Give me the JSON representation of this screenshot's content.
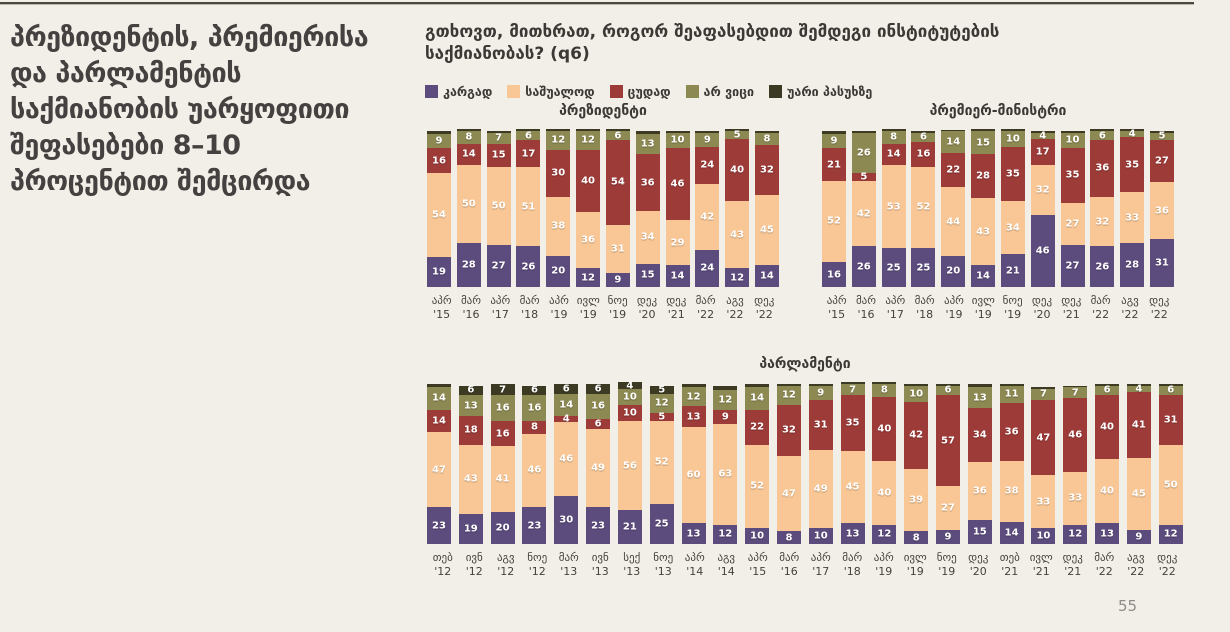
{
  "page": {
    "number": "55"
  },
  "sidebar": {
    "title": "პრეზიდენტის, პრემიერისა და პარლამენტის საქმიანობის უარყოფითი შეფასებები 8–10 პროცენტით შემცირდა"
  },
  "question": "გთხოვთ, მითხრათ, როგორ შეაფასებდით შემდეგი ინსტიტუტების საქმიანობას? (q6)",
  "legend": [
    {
      "label": "კარგად",
      "color": "#5c4b7d"
    },
    {
      "label": "საშუალოდ",
      "color": "#f9c795"
    },
    {
      "label": "ცუდად",
      "color": "#9d3b38"
    },
    {
      "label": "არ ვიცი",
      "color": "#8d8952"
    },
    {
      "label": "უარი პასუხზე",
      "color": "#3c3a23"
    }
  ],
  "chart_data": [
    {
      "type": "bar",
      "stacked": true,
      "unit": "%",
      "ylim": [
        0,
        100
      ],
      "title": "პრეზიდენტი",
      "categories": [
        "აპრ '15",
        "მარ '16",
        "აპრ '17",
        "მარ '18",
        "აპრ '19",
        "ივლ '19",
        "ნოე '19",
        "დეკ '20",
        "დეკ '21",
        "მარ '22",
        "აგვ '22",
        "დეკ '22"
      ],
      "series": [
        {
          "name": "კარგად",
          "values": [
            19,
            28,
            27,
            26,
            20,
            12,
            9,
            15,
            14,
            24,
            12,
            14
          ]
        },
        {
          "name": "საშუალოდ",
          "values": [
            54,
            50,
            50,
            51,
            38,
            36,
            31,
            34,
            29,
            42,
            43,
            45
          ]
        },
        {
          "name": "ცუდად",
          "values": [
            16,
            14,
            15,
            17,
            30,
            40,
            54,
            36,
            46,
            24,
            40,
            32
          ]
        },
        {
          "name": "არ ვიცი",
          "values": [
            9,
            8,
            7,
            6,
            12,
            12,
            6,
            13,
            10,
            9,
            5,
            8
          ]
        },
        {
          "name": "უარი პასუხზე",
          "values": [
            2,
            1,
            1,
            1,
            1,
            1,
            1,
            2,
            1,
            1,
            1,
            1
          ]
        }
      ]
    },
    {
      "type": "bar",
      "stacked": true,
      "unit": "%",
      "ylim": [
        0,
        100
      ],
      "title": "პრემიერ-მინისტრი",
      "categories": [
        "აპრ '15",
        "მარ '16",
        "აპრ '17",
        "მარ '18",
        "აპრ '19",
        "ივლ '19",
        "ნოე '19",
        "დეკ '20",
        "დეკ '21",
        "მარ '22",
        "აგვ '22",
        "დეკ '22"
      ],
      "series": [
        {
          "name": "კარგად",
          "values": [
            16,
            26,
            25,
            25,
            20,
            14,
            21,
            46,
            27,
            26,
            28,
            31
          ]
        },
        {
          "name": "საშუალოდ",
          "values": [
            52,
            42,
            53,
            52,
            44,
            43,
            34,
            32,
            27,
            32,
            33,
            36
          ]
        },
        {
          "name": "ცუდად",
          "values": [
            21,
            5,
            14,
            16,
            22,
            28,
            35,
            17,
            35,
            36,
            35,
            27
          ]
        },
        {
          "name": "არ ვიცი",
          "values": [
            9,
            26,
            8,
            6,
            14,
            15,
            10,
            4,
            10,
            6,
            4,
            5
          ]
        },
        {
          "name": "უარი პასუხზე",
          "values": [
            2,
            1,
            1,
            1,
            1,
            1,
            1,
            1,
            1,
            1,
            1,
            1
          ]
        }
      ]
    },
    {
      "type": "bar",
      "stacked": true,
      "unit": "%",
      "ylim": [
        0,
        100
      ],
      "title": "პარლამენტი",
      "categories": [
        "თებ '12",
        "ივნ '12",
        "აგვ '12",
        "ნოე '12",
        "მარ '13",
        "ივნ '13",
        "სექ '13",
        "ნოე '13",
        "აპრ '14",
        "აგვ '14",
        "აპრ '15",
        "მარ '16",
        "აპრ '17",
        "მარ '18",
        "აპრ '19",
        "ივლ '19",
        "ნოე '19",
        "დეკ '20",
        "თებ '21",
        "ივლ '21",
        "დეკ '21",
        "მარ '22",
        "აგვ '22",
        "დეკ '22"
      ],
      "series": [
        {
          "name": "კარგად",
          "values": [
            23,
            19,
            20,
            23,
            30,
            23,
            21,
            25,
            13,
            12,
            10,
            8,
            10,
            13,
            12,
            8,
            9,
            15,
            14,
            10,
            12,
            13,
            9,
            12
          ]
        },
        {
          "name": "საშუალოდ",
          "values": [
            47,
            43,
            41,
            46,
            46,
            49,
            56,
            52,
            60,
            63,
            52,
            47,
            49,
            45,
            40,
            39,
            27,
            36,
            38,
            33,
            33,
            40,
            45,
            50
          ]
        },
        {
          "name": "ცუდად",
          "values": [
            14,
            18,
            16,
            8,
            4,
            6,
            10,
            5,
            13,
            9,
            22,
            32,
            31,
            35,
            40,
            42,
            57,
            34,
            36,
            47,
            46,
            40,
            41,
            31
          ]
        },
        {
          "name": "არ ვიცი",
          "values": [
            14,
            13,
            16,
            16,
            14,
            16,
            10,
            12,
            12,
            12,
            14,
            12,
            9,
            7,
            8,
            10,
            6,
            13,
            11,
            7,
            7,
            6,
            4,
            6
          ]
        },
        {
          "name": "უარი პასუხზე",
          "values": [
            2,
            6,
            7,
            6,
            6,
            6,
            4,
            5,
            2,
            3,
            2,
            1,
            1,
            1,
            1,
            1,
            1,
            2,
            1,
            1,
            1,
            1,
            1,
            1
          ]
        }
      ]
    }
  ]
}
